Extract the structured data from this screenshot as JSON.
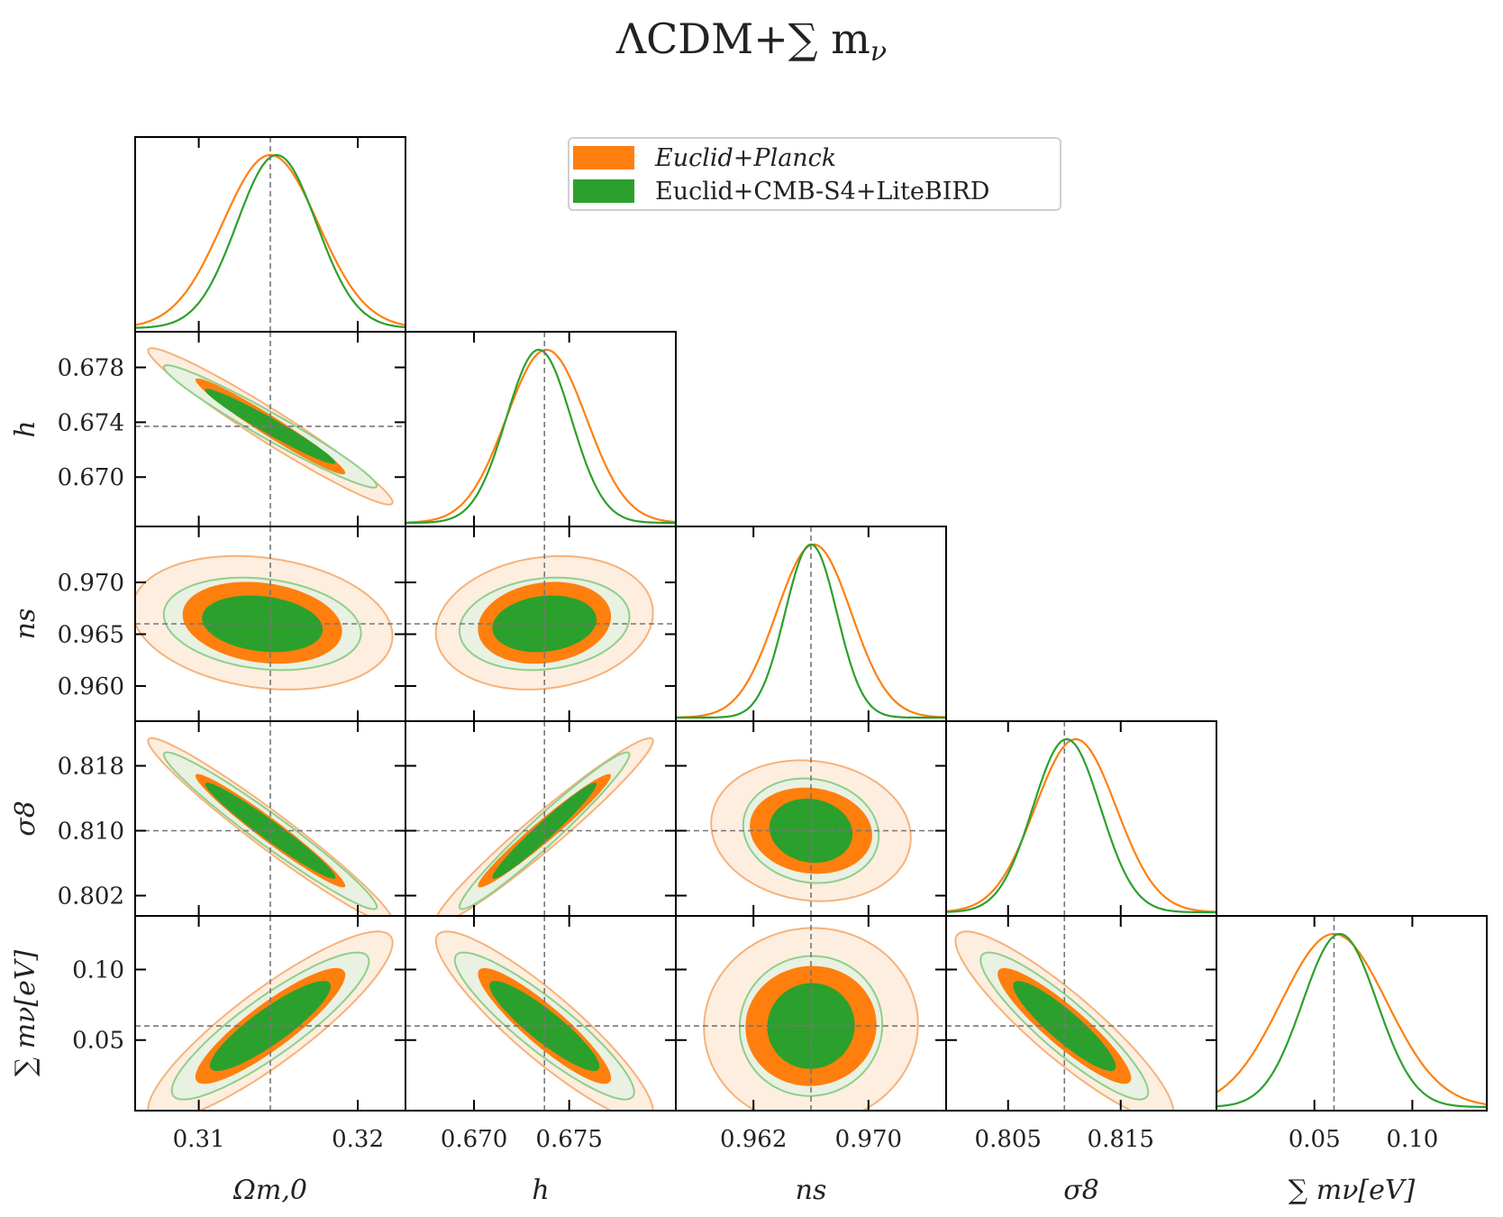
{
  "figure": {
    "title": "ΛCDM+∑ m",
    "title_subscript": "ν"
  },
  "legend": {
    "entries": [
      {
        "label": "Euclid+Planck",
        "color": "#ff7f0e"
      },
      {
        "label": "Euclid+CMB-S4+LiteBIRD",
        "color": "#2ca02c"
      }
    ]
  },
  "colors": {
    "planck": "#ff7f0e",
    "planck_inner_fill": "#ff7f0e",
    "planck_outer_fill": "#fdeee0",
    "planck_outer_line": "#f6b27a",
    "s4": "#2ca02c",
    "s4_outer_fill": "#e9f1e2",
    "s4_outer_line": "#8fcf8b",
    "fiducial_line": "#777777"
  },
  "chart_data": {
    "type": "corner",
    "fiducial": {
      "Om": 0.3145,
      "h": 0.6737,
      "ns": 0.966,
      "s8": 0.81,
      "mnu": 0.06
    },
    "parameters": [
      {
        "key": "Om",
        "xlabel": "Ωm,0",
        "ylabel": "",
        "range": [
          0.306,
          0.323
        ],
        "ticks": [
          0.31,
          0.32
        ],
        "tick_labels": [
          "0.31",
          "0.32"
        ]
      },
      {
        "key": "h",
        "xlabel": "h",
        "ylabel": "h",
        "range": [
          0.6664,
          0.6806
        ],
        "ticks": [
          0.67,
          0.674,
          0.678
        ],
        "tick_labels": [
          "0.670",
          "0.674",
          "0.678"
        ],
        "xticks": [
          0.67,
          0.675
        ],
        "xtick_labels": [
          "0.670",
          "0.675"
        ]
      },
      {
        "key": "ns",
        "xlabel": "ns",
        "ylabel": "ns",
        "range": [
          0.9566,
          0.9754
        ],
        "ticks": [
          0.96,
          0.965,
          0.97
        ],
        "tick_labels": [
          "0.960",
          "0.965",
          "0.970"
        ],
        "xticks": [
          0.962,
          0.97
        ],
        "xtick_labels": [
          "0.962",
          "0.970"
        ]
      },
      {
        "key": "s8",
        "xlabel": "σ8",
        "ylabel": "σ8",
        "range": [
          0.7995,
          0.8235
        ],
        "ticks": [
          0.802,
          0.81,
          0.818
        ],
        "tick_labels": [
          "0.802",
          "0.810",
          "0.818"
        ],
        "xticks": [
          0.805,
          0.815
        ],
        "xtick_labels": [
          "0.805",
          "0.815"
        ]
      },
      {
        "key": "mnu",
        "xlabel": "∑ mν[eV]",
        "ylabel": "∑ mν[eV]",
        "range": [
          0.0,
          0.138
        ],
        "ticks": [
          0.05,
          0.1
        ],
        "tick_labels": [
          "0.05",
          "0.10"
        ]
      }
    ],
    "diagonal_1d": [
      {
        "param": "Om",
        "planck": {
          "mean": 0.3145,
          "sigma": 0.003
        },
        "s4": {
          "mean": 0.3149,
          "sigma": 0.0025
        }
      },
      {
        "param": "h",
        "planck": {
          "mean": 0.6738,
          "sigma": 0.0021
        },
        "s4": {
          "mean": 0.6734,
          "sigma": 0.0017
        }
      },
      {
        "param": "ns",
        "planck": {
          "mean": 0.9662,
          "sigma": 0.0026
        },
        "s4": {
          "mean": 0.966,
          "sigma": 0.0018
        }
      },
      {
        "param": "s8",
        "planck": {
          "mean": 0.811,
          "sigma": 0.0036
        },
        "s4": {
          "mean": 0.8102,
          "sigma": 0.003
        }
      },
      {
        "param": "mnu",
        "planck": {
          "mean": 0.06,
          "sigma": 0.027
        },
        "s4": {
          "mean": 0.063,
          "sigma": 0.019
        }
      }
    ],
    "contours_2d": [
      {
        "x": "Om",
        "y": "h",
        "corr": -0.97,
        "planck": {
          "mx": 0.3145,
          "my": 0.6737,
          "sx": 0.0031,
          "sy": 0.0023
        },
        "s4": {
          "mx": 0.3145,
          "my": 0.6737,
          "sx": 0.0027,
          "sy": 0.0018
        }
      },
      {
        "x": "Om",
        "y": "ns",
        "corr": -0.2,
        "planck": {
          "mx": 0.314,
          "my": 0.9661,
          "sx": 0.0033,
          "sy": 0.0026
        },
        "s4": {
          "mx": 0.314,
          "my": 0.966,
          "sx": 0.0025,
          "sy": 0.0018
        }
      },
      {
        "x": "h",
        "y": "ns",
        "corr": 0.15,
        "planck": {
          "mx": 0.6737,
          "my": 0.9661,
          "sx": 0.0023,
          "sy": 0.0026
        },
        "s4": {
          "mx": 0.6737,
          "my": 0.966,
          "sx": 0.0018,
          "sy": 0.0018
        }
      },
      {
        "x": "Om",
        "y": "s8",
        "corr": -0.97,
        "planck": {
          "mx": 0.3145,
          "my": 0.81,
          "sx": 0.0031,
          "sy": 0.0046
        },
        "s4": {
          "mx": 0.3145,
          "my": 0.81,
          "sx": 0.0027,
          "sy": 0.0039
        }
      },
      {
        "x": "h",
        "y": "s8",
        "corr": 0.97,
        "planck": {
          "mx": 0.6737,
          "my": 0.81,
          "sx": 0.0023,
          "sy": 0.0046
        },
        "s4": {
          "mx": 0.6737,
          "my": 0.81,
          "sx": 0.0018,
          "sy": 0.0039
        }
      },
      {
        "x": "ns",
        "y": "s8",
        "corr": -0.1,
        "planck": {
          "mx": 0.966,
          "my": 0.81,
          "sx": 0.0028,
          "sy": 0.0035
        },
        "s4": {
          "mx": 0.966,
          "my": 0.81,
          "sx": 0.0019,
          "sy": 0.0026
        }
      },
      {
        "x": "Om",
        "y": "mnu",
        "corr": 0.88,
        "planck": {
          "mx": 0.3145,
          "my": 0.06,
          "sx": 0.0031,
          "sy": 0.027
        },
        "s4": {
          "mx": 0.3145,
          "my": 0.06,
          "sx": 0.0025,
          "sy": 0.021
        }
      },
      {
        "x": "h",
        "y": "mnu",
        "corr": -0.9,
        "planck": {
          "mx": 0.6737,
          "my": 0.06,
          "sx": 0.0023,
          "sy": 0.027
        },
        "s4": {
          "mx": 0.6737,
          "my": 0.06,
          "sx": 0.0019,
          "sy": 0.021
        }
      },
      {
        "x": "ns",
        "y": "mnu",
        "corr": 0.02,
        "planck": {
          "mx": 0.966,
          "my": 0.06,
          "sx": 0.003,
          "sy": 0.028
        },
        "s4": {
          "mx": 0.966,
          "my": 0.06,
          "sx": 0.002,
          "sy": 0.02
        }
      },
      {
        "x": "s8",
        "y": "mnu",
        "corr": -0.9,
        "planck": {
          "mx": 0.81,
          "my": 0.06,
          "sx": 0.0039,
          "sy": 0.027
        },
        "s4": {
          "mx": 0.81,
          "my": 0.06,
          "sx": 0.003,
          "sy": 0.021
        }
      }
    ]
  }
}
